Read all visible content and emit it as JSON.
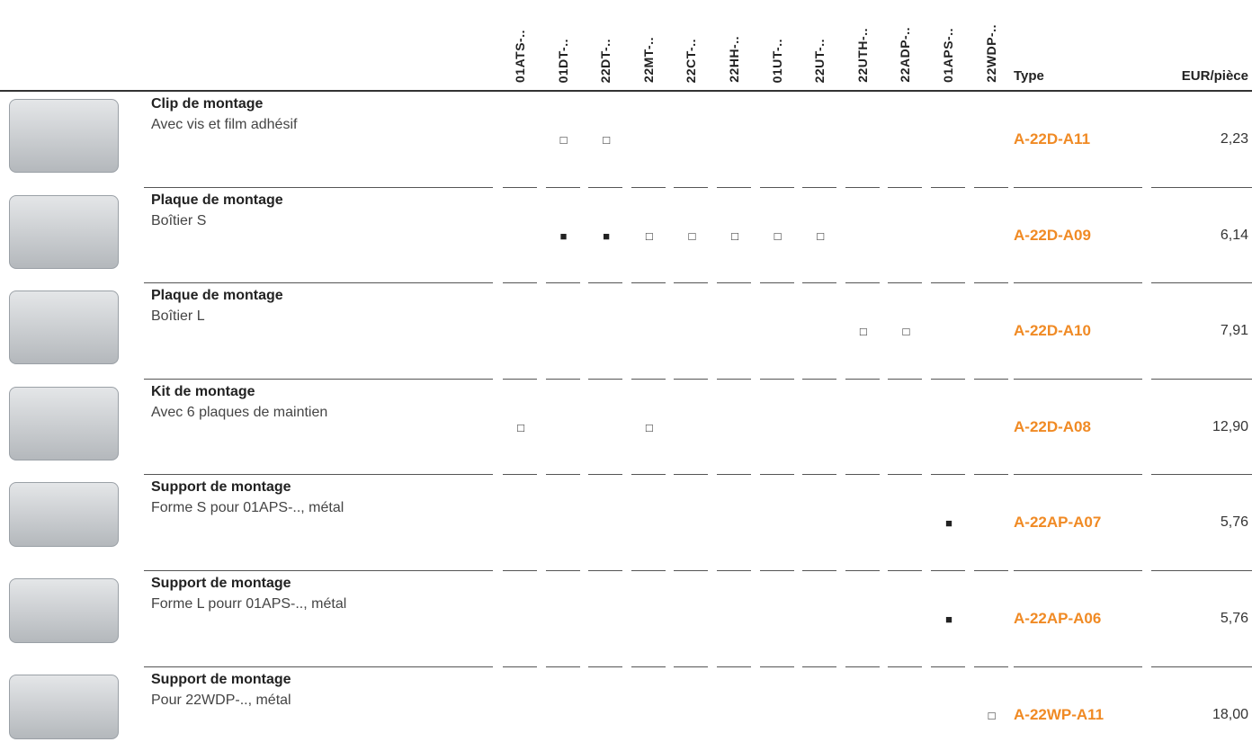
{
  "table": {
    "columns": [
      "01ATS-..",
      "01DT-..",
      "22DT-..",
      "22MT-..",
      "22CT-..",
      "22HH-..",
      "01UT-..",
      "22UT-..",
      "22UTH-..",
      "22ADP-..",
      "01APS-..",
      "22WDP-.."
    ],
    "type_header": "Type",
    "price_header": "EUR/pièce",
    "rows": [
      {
        "title": "Clip de montage",
        "subtitle": "Avec vis et film adhésif",
        "marks": [
          null,
          "□",
          "□",
          null,
          null,
          null,
          null,
          null,
          null,
          null,
          null,
          null
        ],
        "type": "A-22D-A11",
        "price": "2,23"
      },
      {
        "title": "Plaque de montage",
        "subtitle": "Boîtier S",
        "marks": [
          null,
          "■",
          "■",
          "□",
          "□",
          "□",
          "□",
          "□",
          null,
          null,
          null,
          null
        ],
        "type": "A-22D-A09",
        "price": "6,14"
      },
      {
        "title": "Plaque de montage",
        "subtitle": "Boîtier L",
        "marks": [
          null,
          null,
          null,
          null,
          null,
          null,
          null,
          null,
          "□",
          "□",
          null,
          null
        ],
        "type": "A-22D-A10",
        "price": "7,91"
      },
      {
        "title": "Kit de montage",
        "subtitle": "Avec 6 plaques de maintien",
        "marks": [
          "□",
          null,
          null,
          "□",
          null,
          null,
          null,
          null,
          null,
          null,
          null,
          null
        ],
        "type": "A-22D-A08",
        "price": "12,90"
      },
      {
        "title": "Support de montage",
        "subtitle": "Forme S pour 01APS-.., métal",
        "marks": [
          null,
          null,
          null,
          null,
          null,
          null,
          null,
          null,
          null,
          null,
          "■",
          null
        ],
        "type": "A-22AP-A07",
        "price": "5,76"
      },
      {
        "title": "Support de montage",
        "subtitle": "Forme L pourr 01APS-.., métal",
        "marks": [
          null,
          null,
          null,
          null,
          null,
          null,
          null,
          null,
          null,
          null,
          "■",
          null
        ],
        "type": "A-22AP-A06",
        "price": "5,76"
      },
      {
        "title": "Support de montage",
        "subtitle": "Pour 22WDP-.., métal",
        "marks": [
          null,
          null,
          null,
          null,
          null,
          null,
          null,
          null,
          null,
          null,
          null,
          "□"
        ],
        "type": "A-22WP-A11",
        "price": "18,00"
      }
    ]
  }
}
